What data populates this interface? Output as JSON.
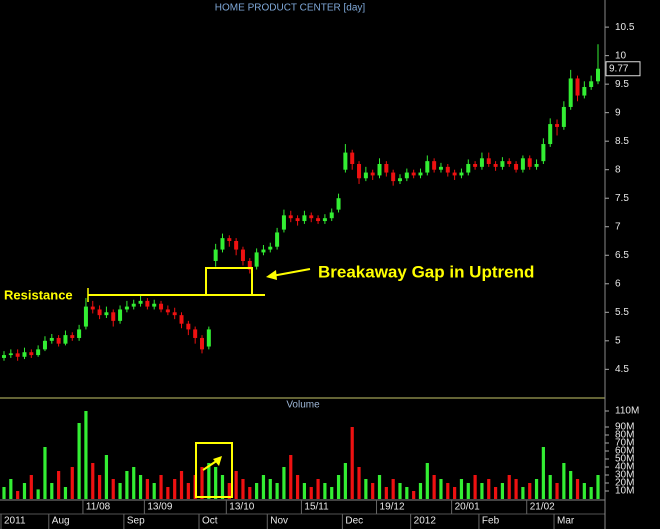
{
  "chart_data": {
    "type": "candlestick",
    "title": "HOME PRODUCT CENTER [day]",
    "volume_label": "Volume",
    "annotations": [
      "Resistance",
      "Breakaway Gap in Uptrend"
    ],
    "categories": [
      null,
      null,
      null,
      null,
      null,
      null,
      null,
      null,
      null,
      null,
      null,
      null,
      "11/08",
      null,
      null,
      null,
      null,
      null,
      null,
      null,
      null,
      "13/09",
      null,
      null,
      null,
      null,
      null,
      null,
      null,
      null,
      null,
      null,
      null,
      "13/10",
      null,
      null,
      null,
      null,
      null,
      null,
      null,
      null,
      null,
      null,
      "15/11",
      null,
      null,
      null,
      null,
      null,
      null,
      null,
      null,
      null,
      null,
      "19/12",
      null,
      null,
      null,
      null,
      null,
      null,
      null,
      null,
      null,
      null,
      "20/01",
      null,
      null,
      null,
      null,
      null,
      null,
      null,
      null,
      null,
      null,
      "21/02",
      null,
      null,
      null,
      null,
      null,
      null,
      null,
      null,
      null,
      null
    ],
    "months": [
      "2011",
      null,
      null,
      null,
      null,
      null,
      null,
      "Aug",
      null,
      null,
      null,
      null,
      null,
      null,
      null,
      null,
      null,
      null,
      "Sep",
      null,
      null,
      null,
      null,
      null,
      null,
      null,
      null,
      null,
      null,
      "Oct",
      null,
      null,
      null,
      null,
      null,
      null,
      null,
      null,
      null,
      "Nov",
      null,
      null,
      null,
      null,
      null,
      null,
      null,
      null,
      null,
      null,
      "Dec",
      null,
      null,
      null,
      null,
      null,
      null,
      null,
      null,
      null,
      "2012",
      null,
      null,
      null,
      null,
      null,
      null,
      null,
      null,
      null,
      "Feb",
      null,
      null,
      null,
      null,
      null,
      null,
      null,
      null,
      null,
      null,
      "Mar",
      null,
      null,
      null,
      null,
      null,
      null
    ],
    "open": [
      4.7,
      4.75,
      4.78,
      4.72,
      4.8,
      4.75,
      4.85,
      5.0,
      5.05,
      4.95,
      5.1,
      5.05,
      5.25,
      5.6,
      5.55,
      5.45,
      5.5,
      5.35,
      5.55,
      5.6,
      5.65,
      5.7,
      5.6,
      5.65,
      5.55,
      5.5,
      5.45,
      5.3,
      5.2,
      5.05,
      4.9,
      6.4,
      6.6,
      6.8,
      6.75,
      6.6,
      6.4,
      6.3,
      6.55,
      6.6,
      6.65,
      6.95,
      7.2,
      7.15,
      7.1,
      7.2,
      7.15,
      7.1,
      7.15,
      7.3,
      8.0,
      8.3,
      8.1,
      7.85,
      7.95,
      7.9,
      8.1,
      7.95,
      7.8,
      7.85,
      7.95,
      7.9,
      7.95,
      8.15,
      8.0,
      8.05,
      7.95,
      7.9,
      7.95,
      8.1,
      8.05,
      8.2,
      8.1,
      8.05,
      8.15,
      8.1,
      8.0,
      8.2,
      8.05,
      8.15,
      8.45,
      8.8,
      8.75,
      9.1,
      9.6,
      9.3,
      9.45,
      9.55
    ],
    "high": [
      4.82,
      4.85,
      4.85,
      4.88,
      4.85,
      4.92,
      5.08,
      5.12,
      5.1,
      5.18,
      5.15,
      5.28,
      5.75,
      5.7,
      5.62,
      5.6,
      5.55,
      5.62,
      5.7,
      5.72,
      5.8,
      5.75,
      5.72,
      5.7,
      5.62,
      5.58,
      5.5,
      5.35,
      5.25,
      5.1,
      5.25,
      6.7,
      6.88,
      6.85,
      6.8,
      6.65,
      6.45,
      6.62,
      6.68,
      6.72,
      6.98,
      7.3,
      7.28,
      7.2,
      7.28,
      7.25,
      7.2,
      7.22,
      7.32,
      7.58,
      8.45,
      8.35,
      8.15,
      8.05,
      8.0,
      8.2,
      8.15,
      8.0,
      7.92,
      8.02,
      8.0,
      8.02,
      8.25,
      8.2,
      8.12,
      8.1,
      8.0,
      8.02,
      8.18,
      8.15,
      8.3,
      8.3,
      8.15,
      8.22,
      8.2,
      8.15,
      8.25,
      8.25,
      8.18,
      8.55,
      8.9,
      8.88,
      9.2,
      9.75,
      9.65,
      9.55,
      9.65,
      10.2
    ],
    "low": [
      4.65,
      4.7,
      4.65,
      4.68,
      4.7,
      4.72,
      4.82,
      4.95,
      4.9,
      4.92,
      5.0,
      5.0,
      5.2,
      5.48,
      5.38,
      5.4,
      5.25,
      5.3,
      5.5,
      5.55,
      5.6,
      5.55,
      5.55,
      5.5,
      5.45,
      5.38,
      5.22,
      5.1,
      4.95,
      4.78,
      4.85,
      6.3,
      6.55,
      6.65,
      6.5,
      6.32,
      6.18,
      6.25,
      6.5,
      6.55,
      6.6,
      6.9,
      7.08,
      7.02,
      7.05,
      7.08,
      7.05,
      7.05,
      7.1,
      7.25,
      7.95,
      8.0,
      7.75,
      7.8,
      7.82,
      7.85,
      7.88,
      7.72,
      7.75,
      7.8,
      7.85,
      7.85,
      7.9,
      7.95,
      7.95,
      7.88,
      7.82,
      7.85,
      7.9,
      8.0,
      8.0,
      8.05,
      7.98,
      8.0,
      8.05,
      7.95,
      7.95,
      8.0,
      8.0,
      8.1,
      8.4,
      8.6,
      8.7,
      9.05,
      9.2,
      9.25,
      9.4,
      9.5
    ],
    "close": [
      4.75,
      4.78,
      4.72,
      4.8,
      4.75,
      4.85,
      5.0,
      5.05,
      4.95,
      5.1,
      5.05,
      5.2,
      5.6,
      5.55,
      5.45,
      5.5,
      5.35,
      5.55,
      5.6,
      5.65,
      5.7,
      5.6,
      5.65,
      5.55,
      5.5,
      5.45,
      5.3,
      5.2,
      5.05,
      4.85,
      5.2,
      6.6,
      6.8,
      6.75,
      6.6,
      6.4,
      6.25,
      6.55,
      6.6,
      6.65,
      6.9,
      7.2,
      7.15,
      7.1,
      7.2,
      7.15,
      7.1,
      7.15,
      7.25,
      7.5,
      8.3,
      8.1,
      7.85,
      7.95,
      7.9,
      8.1,
      7.95,
      7.8,
      7.85,
      7.95,
      7.9,
      7.95,
      8.15,
      8.0,
      8.05,
      7.95,
      7.9,
      7.95,
      8.1,
      8.05,
      8.2,
      8.1,
      8.05,
      8.15,
      8.1,
      8.0,
      8.2,
      8.05,
      8.1,
      8.45,
      8.8,
      8.75,
      9.1,
      9.6,
      9.3,
      9.45,
      9.55,
      9.77
    ],
    "volume": [
      15,
      25,
      10,
      20,
      30,
      12,
      65,
      20,
      35,
      15,
      40,
      95,
      110,
      45,
      30,
      55,
      25,
      20,
      35,
      40,
      30,
      25,
      20,
      30,
      15,
      25,
      35,
      20,
      30,
      40,
      45,
      40,
      30,
      20,
      35,
      25,
      15,
      20,
      30,
      25,
      20,
      40,
      55,
      30,
      20,
      15,
      25,
      20,
      15,
      30,
      45,
      90,
      40,
      25,
      20,
      30,
      15,
      25,
      20,
      15,
      10,
      20,
      45,
      30,
      25,
      20,
      15,
      25,
      20,
      30,
      20,
      25,
      15,
      20,
      30,
      25,
      15,
      20,
      25,
      65,
      30,
      20,
      45,
      35,
      25,
      20,
      15,
      30
    ],
    "up_color": "#33ee33",
    "down_color": "#ee1111",
    "ylim": [
      4.05,
      10.8
    ],
    "yticks": [
      4.5,
      5,
      5.5,
      6,
      6.5,
      7,
      7.5,
      8,
      8.5,
      9,
      9.5,
      10,
      10.5
    ],
    "y2lim": [
      0,
      125
    ],
    "y2ticks": [
      {
        "value": 10,
        "label": "10M"
      },
      {
        "value": 20,
        "label": "20M"
      },
      {
        "value": 30,
        "label": "30M"
      },
      {
        "value": 40,
        "label": "40M"
      },
      {
        "value": 50,
        "label": "50M"
      },
      {
        "value": 60,
        "label": "60M"
      },
      {
        "value": 70,
        "label": "70M"
      },
      {
        "value": 80,
        "label": "80M"
      },
      {
        "value": 90,
        "label": "90M"
      },
      {
        "value": 110,
        "label": "110M"
      }
    ],
    "grid": false
  }
}
